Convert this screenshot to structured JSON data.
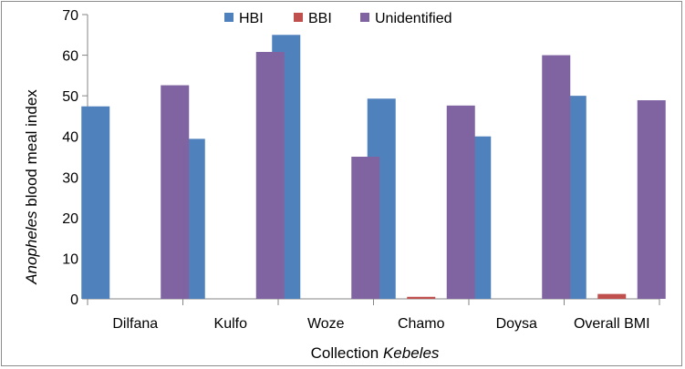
{
  "chart_data": {
    "type": "bar",
    "categories": [
      "Dilfana",
      "Kulfo",
      "Woze",
      "Chamo",
      "Doysa",
      "Overall BMI"
    ],
    "series": [
      {
        "name": "HBI",
        "values": [
          47.4,
          39.4,
          65.0,
          49.3,
          40.0,
          50.0
        ],
        "color": "#4f81bd"
      },
      {
        "name": "BBI",
        "values": [
          0,
          0,
          0,
          0.5,
          0,
          1.2
        ],
        "color": "#c0504d"
      },
      {
        "name": "Unidentified",
        "values": [
          52.6,
          60.8,
          35.0,
          47.6,
          60.0,
          48.9
        ],
        "color": "#8064a2"
      }
    ],
    "ylim": [
      0,
      70
    ],
    "yticks": [
      0,
      10,
      20,
      30,
      40,
      50,
      60,
      70
    ],
    "ylabel_italic": "Anopheles",
    "ylabel_rest": " blood meal index",
    "xlabel_plain": "Collection ",
    "xlabel_italic": "Kebeles",
    "legend_position": "top-center",
    "grid": false
  }
}
